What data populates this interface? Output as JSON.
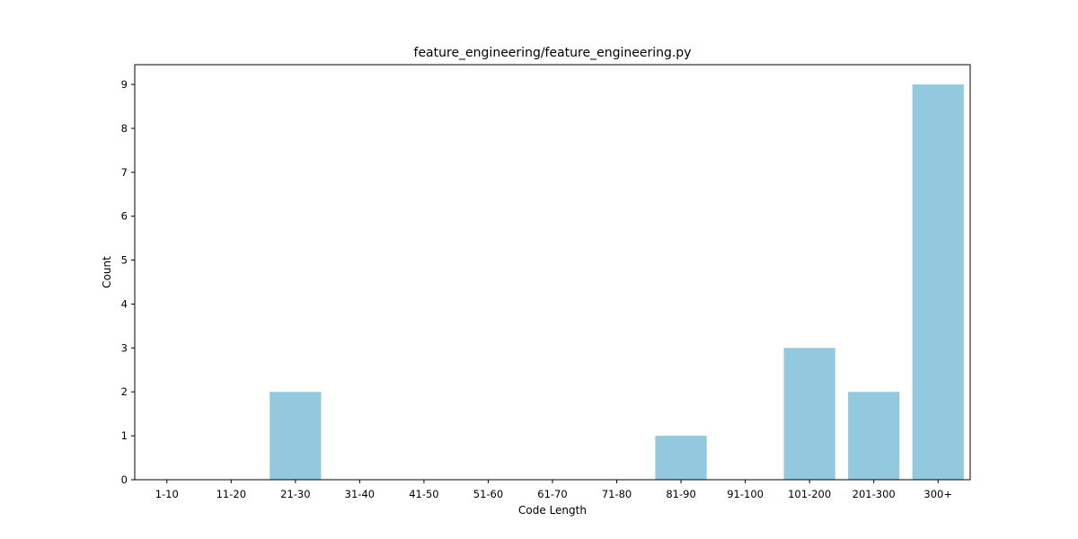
{
  "chart_data": {
    "type": "bar",
    "title": "feature_engineering/feature_engineering.py",
    "xlabel": "Code Length",
    "ylabel": "Count",
    "categories": [
      "1-10",
      "11-20",
      "21-30",
      "31-40",
      "41-50",
      "51-60",
      "61-70",
      "71-80",
      "81-90",
      "91-100",
      "101-200",
      "201-300",
      "300+"
    ],
    "values": [
      0,
      0,
      2,
      0,
      0,
      0,
      0,
      0,
      1,
      0,
      3,
      2,
      9
    ],
    "ylim": [
      0,
      9.45
    ],
    "yticks": [
      0,
      1,
      2,
      3,
      4,
      5,
      6,
      7,
      8,
      9
    ],
    "grid": false,
    "bar_color": "#92c9df"
  }
}
